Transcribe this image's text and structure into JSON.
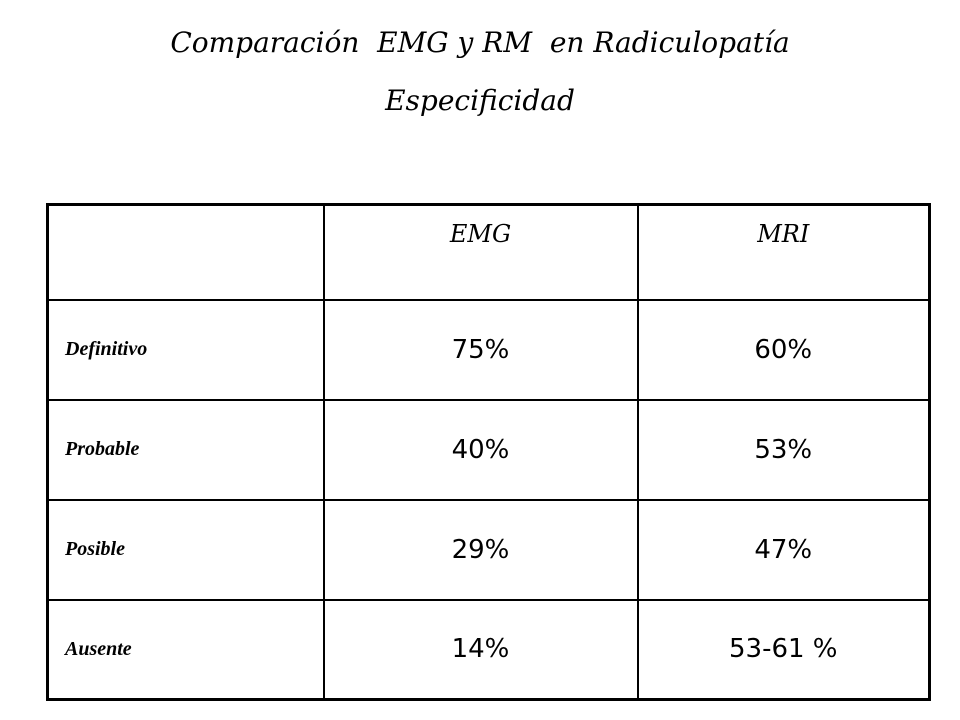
{
  "header": {
    "title": "Comparación  EMG y RM  en Radiculopatía",
    "subtitle": "Especificidad"
  },
  "table": {
    "columns": [
      "EMG",
      "MRI"
    ],
    "rows": [
      [
        "Definitivo",
        "75%",
        "60%"
      ],
      [
        "Probable",
        "40%",
        "53%"
      ],
      [
        "Posible",
        "29%",
        "47%"
      ],
      [
        "Ausente",
        "14%",
        "53-61 %"
      ]
    ]
  }
}
